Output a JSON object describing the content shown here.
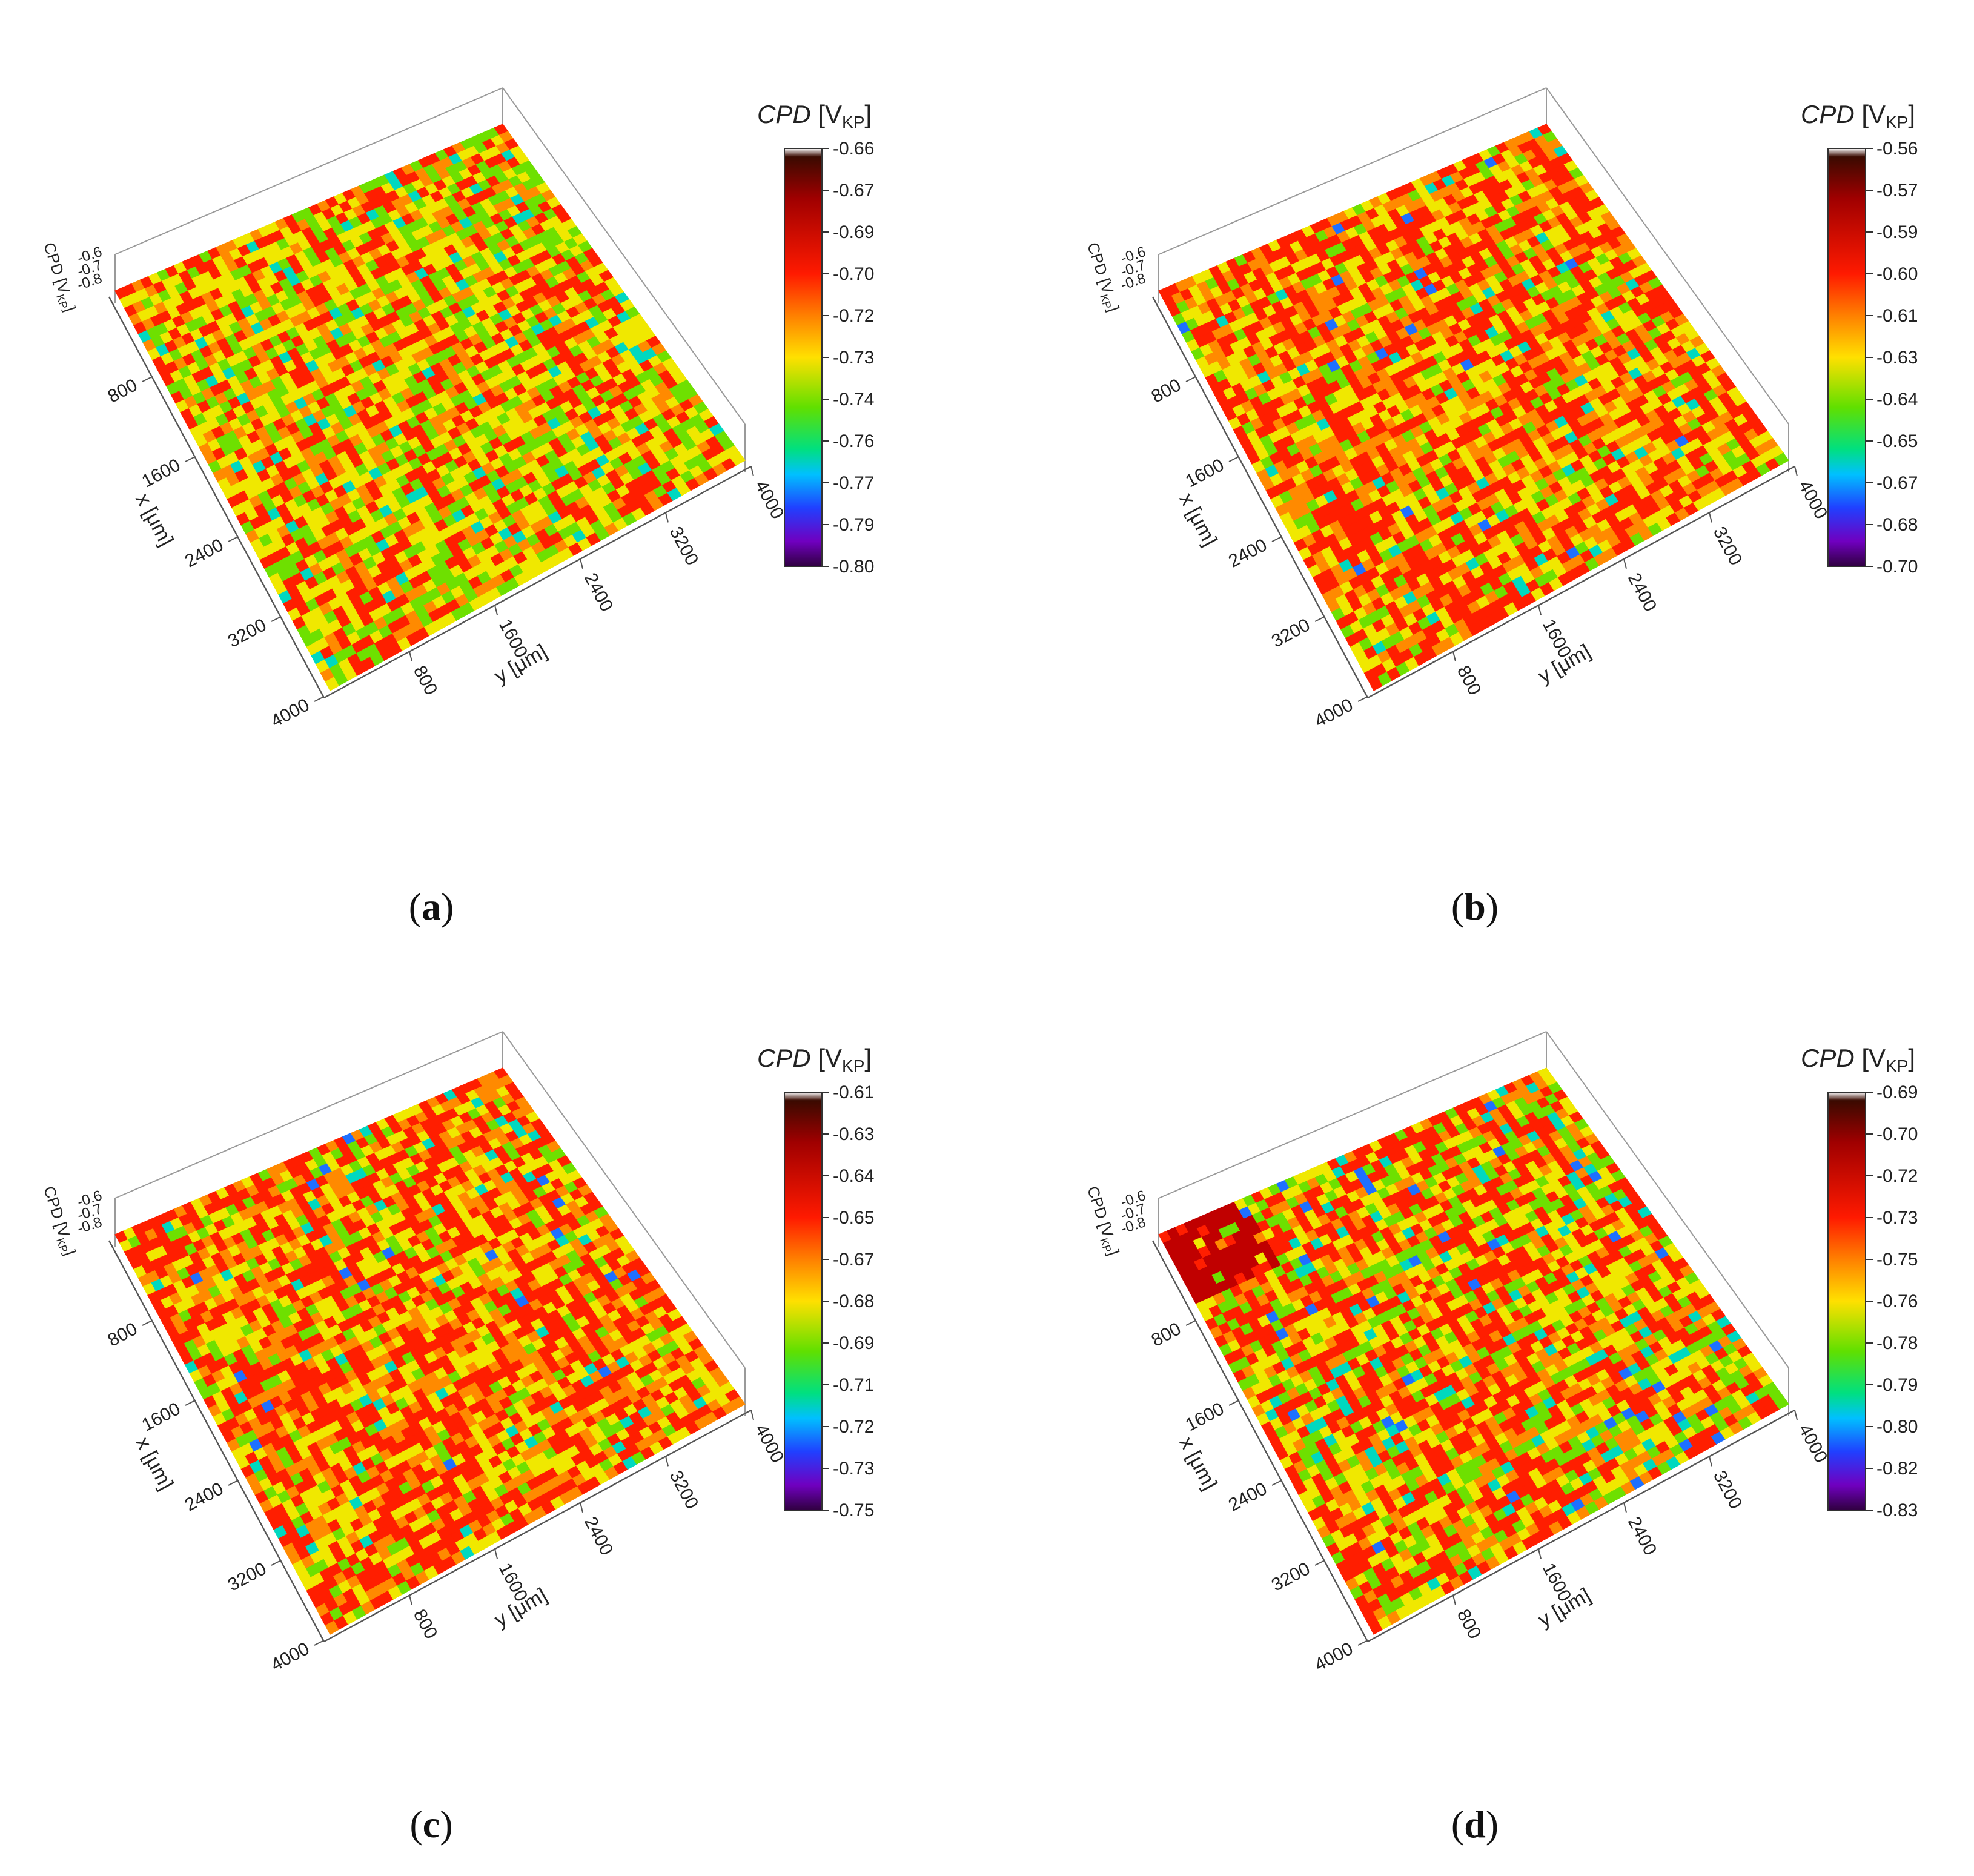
{
  "figure": {
    "panels": [
      "a",
      "b",
      "c",
      "d"
    ]
  },
  "chart_data": [
    {
      "type": "heatmap",
      "panel": "(a)",
      "surface": "3D surface",
      "colorbar_title_main": "CPD",
      "colorbar_title_unit": "V",
      "colorbar_title_sub": "KP",
      "colorbar_ticks": [
        "-0.66",
        "-0.67",
        "-0.69",
        "-0.70",
        "-0.72",
        "-0.73",
        "-0.74",
        "-0.76",
        "-0.77",
        "-0.79",
        "-0.80"
      ],
      "colorbar_range": [
        -0.8,
        -0.66
      ],
      "z_axis_label": "CPD [V",
      "z_axis_label_sub": "KP",
      "z_ticks": [
        "-0.6",
        "-0.7",
        "-0.8"
      ],
      "x_axis_label": "x [μm]",
      "x_ticks": [
        "800",
        "1600",
        "2400",
        "3200",
        "4000"
      ],
      "y_axis_label": "y [μm]",
      "y_ticks": [
        "800",
        "1600",
        "2400",
        "3200",
        "4000"
      ],
      "x_range": [
        0,
        4000
      ],
      "y_range": [
        0,
        4000
      ],
      "dominant_colors": [
        "red",
        "yellow",
        "green"
      ],
      "seed": 11
    },
    {
      "type": "heatmap",
      "panel": "(b)",
      "colorbar_title_main": "CPD",
      "colorbar_title_unit": "V",
      "colorbar_title_sub": "KP",
      "colorbar_ticks": [
        "-0.56",
        "-0.57",
        "-0.59",
        "-0.60",
        "-0.61",
        "-0.63",
        "-0.64",
        "-0.65",
        "-0.67",
        "-0.68",
        "-0.70"
      ],
      "colorbar_range": [
        -0.7,
        -0.56
      ],
      "z_axis_label": "CPD [V",
      "z_axis_label_sub": "KP",
      "z_ticks": [
        "-0.6",
        "-0.7",
        "-0.8"
      ],
      "x_axis_label": "x [μm]",
      "x_ticks": [
        "800",
        "1600",
        "2400",
        "3200",
        "4000"
      ],
      "y_axis_label": "y [μm]",
      "y_ticks": [
        "800",
        "1600",
        "2400",
        "3200",
        "4000"
      ],
      "x_range": [
        0,
        4000
      ],
      "y_range": [
        0,
        4000
      ],
      "dominant_colors": [
        "red",
        "orange",
        "yellow"
      ],
      "seed": 23
    },
    {
      "type": "heatmap",
      "panel": "(c)",
      "colorbar_title_main": "CPD",
      "colorbar_title_unit": "V",
      "colorbar_title_sub": "KP",
      "colorbar_ticks": [
        "-0.61",
        "-0.63",
        "-0.64",
        "-0.65",
        "-0.67",
        "-0.68",
        "-0.69",
        "-0.71",
        "-0.72",
        "-0.73",
        "-0.75"
      ],
      "colorbar_range": [
        -0.75,
        -0.61
      ],
      "z_axis_label": "CPD [V",
      "z_axis_label_sub": "KP",
      "z_ticks": [
        "-0.6",
        "-0.7",
        "-0.8"
      ],
      "x_axis_label": "x [μm]",
      "x_ticks": [
        "800",
        "1600",
        "2400",
        "3200",
        "4000"
      ],
      "y_axis_label": "y [μm]",
      "y_ticks": [
        "800",
        "1600",
        "2400",
        "3200",
        "4000"
      ],
      "x_range": [
        0,
        4000
      ],
      "y_range": [
        0,
        4000
      ],
      "dominant_colors": [
        "red",
        "orange",
        "yellow"
      ],
      "seed": 37
    },
    {
      "type": "heatmap",
      "panel": "(d)",
      "colorbar_title_main": "CPD",
      "colorbar_title_unit": "V",
      "colorbar_title_sub": "KP",
      "colorbar_ticks": [
        "-0.69",
        "-0.70",
        "-0.72",
        "-0.73",
        "-0.75",
        "-0.76",
        "-0.78",
        "-0.79",
        "-0.80",
        "-0.82",
        "-0.83"
      ],
      "colorbar_range": [
        -0.83,
        -0.69
      ],
      "z_axis_label": "CPD [V",
      "z_axis_label_sub": "KP",
      "z_ticks": [
        "-0.6",
        "-0.7",
        "-0.8"
      ],
      "x_axis_label": "x [μm]",
      "x_ticks": [
        "800",
        "1600",
        "2400",
        "3200",
        "4000"
      ],
      "y_axis_label": "y [μm]",
      "y_ticks": [
        "800",
        "1600",
        "2400",
        "3200",
        "4000"
      ],
      "x_range": [
        0,
        4000
      ],
      "y_range": [
        0,
        4000
      ],
      "dominant_colors": [
        "red",
        "yellow",
        "green"
      ],
      "seed": 51
    }
  ],
  "captions": {
    "a": "a",
    "b": "b",
    "c": "c",
    "d": "d"
  }
}
